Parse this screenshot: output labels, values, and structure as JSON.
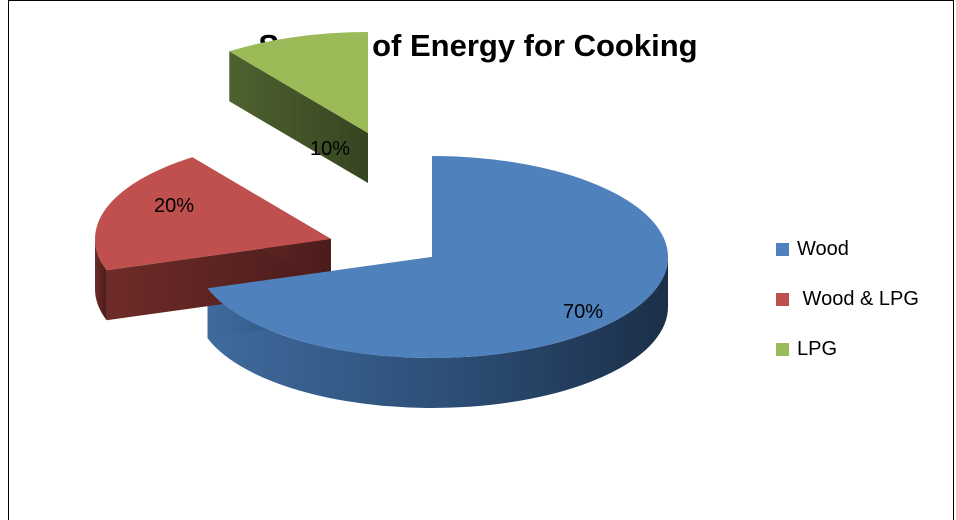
{
  "chart_data": {
    "type": "pie",
    "title": "Source of Energy for Cooking",
    "categories": [
      "Wood",
      "Wood & LPG",
      "LPG"
    ],
    "values": [
      70,
      20,
      10
    ],
    "data_labels": [
      "70%",
      "20%",
      "10%"
    ],
    "colors": [
      "#4F81BD",
      "#C0504D",
      "#9BBB59"
    ],
    "legend_position": "right",
    "style": "3d-exploded"
  },
  "legend": {
    "items": [
      {
        "label": "Wood",
        "color": "#4F81BD"
      },
      {
        "label": " Wood & LPG",
        "color": "#C0504D"
      },
      {
        "label": "LPG",
        "color": "#9BBB59"
      }
    ]
  }
}
